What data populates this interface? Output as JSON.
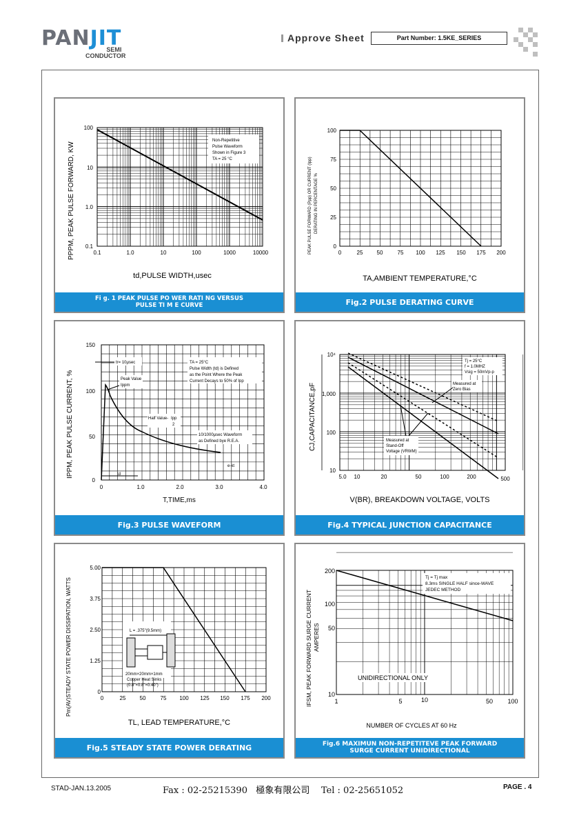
{
  "header": {
    "logo_main": "PAN",
    "logo_accent": "JIT",
    "logo_sub1": "SEMI",
    "logo_sub2": "CONDUCTOR",
    "title": "Approve Sheet",
    "part_number": "Part Number:  1.5KE_SERIES"
  },
  "footer": {
    "left": "STAD-JAN.13.2005",
    "contact": "Fax : 02-25215390   極象有限公司    Tel : 02-25651052",
    "page": "PAGE . 4"
  },
  "figures": {
    "fig1": {
      "caption1": "Fi g. 1 PEAK PULSE PO WER RATI NG  VERSUS",
      "caption2": "PULSE TI M E CURVE",
      "ylabel": "PPPM, PEAK PULSE FORWARD, KW",
      "xlabel": "td,PULSE WIDTH,usec",
      "note1": "Non-Repetitive",
      "note2": "Pulse Waveform",
      "note3": "Shown in Figure 3",
      "note4": "TA = 25 °C",
      "xticks": [
        "0.1",
        "1.0",
        "10",
        "100",
        "1000",
        "10000"
      ],
      "yticks": [
        "100",
        "10",
        "1.0",
        "0.1"
      ]
    },
    "fig2": {
      "caption": "Fig.2 PULSE DERATING CURVE",
      "ylabel1": "PEAK PULSE FORWARD (Ppp) OR CURRENT (Ipp)",
      "ylabel2": "DERATING IN PERCENTAGE %",
      "xlabel": "TA,AMBIENT TEMPERATURE,°C",
      "xticks": [
        "0",
        "25",
        "50",
        "75",
        "100",
        "125",
        "150",
        "175",
        "200"
      ],
      "yticks": [
        "100",
        "75",
        "50",
        "25",
        "0"
      ]
    },
    "fig3": {
      "caption": "Fig.3 PULSE WAVEFORM",
      "ylabel": "IPPM, PEAK PULSE  CURRENT, %",
      "xlabel": "T,TIME,ms",
      "tr_label": "tr= 10μsec",
      "peak1": "Peak Value",
      "peak2": "Ippm",
      "half1": "Half Value-",
      "half2": "Ipp",
      "half3": "2",
      "cond1": "TA = 25°C",
      "cond2": "Pulse Width (td) is Defined",
      "cond3": "as the Point Where the Peak",
      "cond4": "Current Decays to 50% of Ipp",
      "wave1": "10/1000μsec Waveform",
      "wave2": "as Defined bye R.E.A.",
      "ekt": "e-kt",
      "td": "td",
      "xticks": [
        "0",
        "1.0",
        "2.0",
        "3.0",
        "4.0"
      ],
      "yticks": [
        "150",
        "100",
        "50",
        "0"
      ]
    },
    "fig4": {
      "caption": "Fig.4 TYPICAL JUNCTION CAPACITANCE",
      "ylabel": "CJ,CAPACITANCE,pF",
      "xlabel": "V(BR), BREAKDOWN VOLTAGE, VOLTS",
      "cond1": "Tj = 25°C",
      "cond2": "f = 1.0MHZ",
      "cond3": "Vsig = 50mVp-p",
      "zb1": "Measured at",
      "zb2": "Zero Bias",
      "so1": "Measured at",
      "so2": "Stand-Off",
      "so3": "Voltage (VRWM)",
      "xticks": [
        "5.0",
        "10",
        "20",
        "50",
        "100",
        "200",
        "500"
      ],
      "yticks": [
        "10⁴",
        "1,000",
        "100",
        "10"
      ]
    },
    "fig5": {
      "caption": "Fig.5 STEADY STATE POWER DERATING",
      "ylabel": "Pm(AV)STEADY STATE POWER DISSIPATION, WATTS",
      "xlabel": "TL, LEAD TEMPERATURE,°C",
      "lead_len": "L = .375\"(9.5mm)",
      "sink1": "20mm×20mm×1mm",
      "sink2": "Copper Heat Sinks",
      "sink3": "(0.8\"×0.8\"×0.40\")",
      "xticks": [
        "0",
        "25",
        "50",
        "75",
        "100",
        "125",
        "150",
        "175",
        "200"
      ],
      "yticks": [
        "5.00",
        "3.75",
        "2.50",
        "1.25",
        "0"
      ]
    },
    "fig6": {
      "caption1": "Fig.6 MAXIMUN NON-REPETITEVE PEAK FORWARD",
      "caption2": "SURGE CURRENT UNIDIRECTIONAL",
      "ylabel1": "IFSM, PEAK FORWARD SURGE CURRENT",
      "ylabel2": "AMPERES",
      "xlabel": "NUMBER OF CYCLES AT 60 Hz",
      "note1": "Tj = Tj max",
      "note2": "8.3ms SINGLE HALF since-WAVE",
      "note3": "JEDEC METHOD",
      "note4": "UNIDIRECTIONAL  ONLY",
      "xticks": [
        "1",
        "5",
        "10",
        "50",
        "100"
      ],
      "yticks": [
        "200",
        "100",
        "50",
        "10"
      ]
    }
  }
}
